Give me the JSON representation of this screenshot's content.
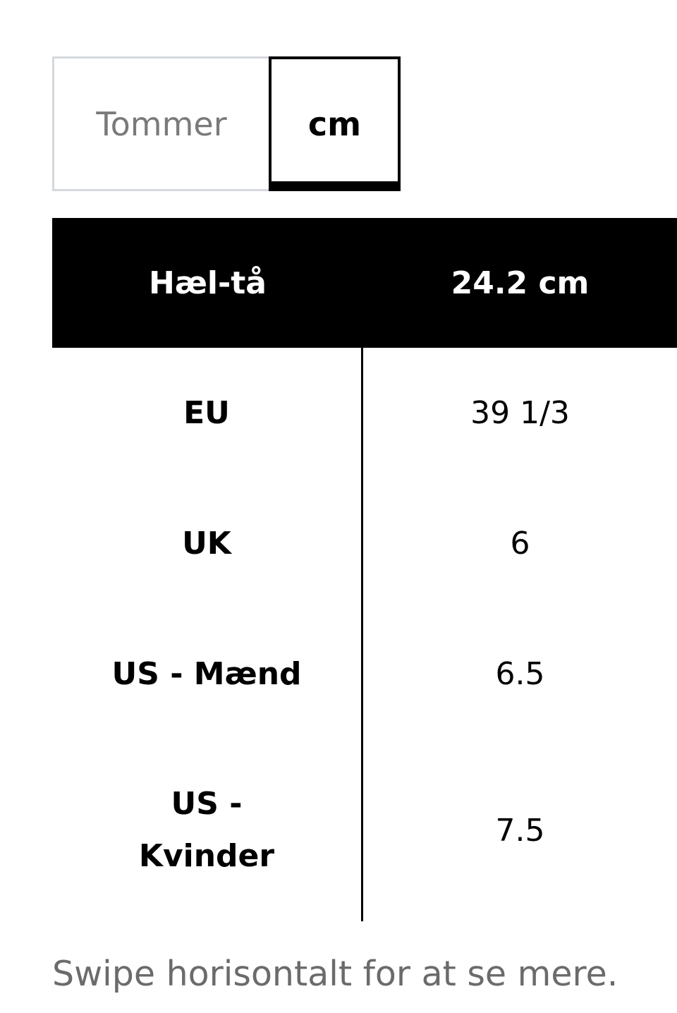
{
  "unit_toggle": {
    "options": [
      {
        "label": "Tommer",
        "selected": false
      },
      {
        "label": "cm",
        "selected": true
      }
    ]
  },
  "table": {
    "header": {
      "label": "Hæl-tå",
      "value": "24.2 cm"
    },
    "rows": [
      {
        "label": "EU",
        "value": "39 1/3"
      },
      {
        "label": "UK",
        "value": "6"
      },
      {
        "label": "US - Mænd",
        "value": "6.5"
      },
      {
        "label": "US - Kvinder",
        "value": "7.5"
      }
    ]
  },
  "footer": {
    "hint": "Swipe horisontalt for at se mere."
  }
}
